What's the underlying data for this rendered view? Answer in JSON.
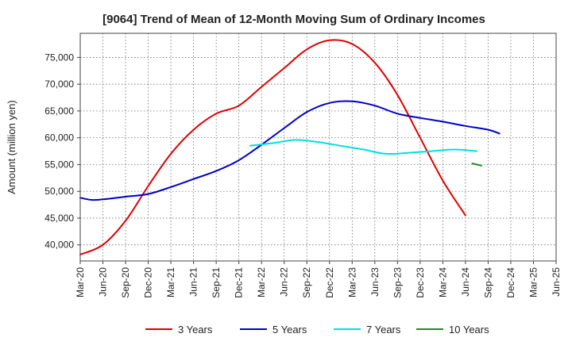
{
  "chart_data": {
    "type": "line",
    "title": "[9064]  Trend of Mean of 12-Month Moving Sum of Ordinary Incomes",
    "xlabel": "",
    "ylabel": "Amount (million yen)",
    "ylim": [
      37000,
      79500
    ],
    "yticks": [
      40000,
      45000,
      50000,
      55000,
      60000,
      65000,
      70000,
      75000
    ],
    "ytick_labels": [
      "40,000",
      "45,000",
      "50,000",
      "55,000",
      "60,000",
      "65,000",
      "70,000",
      "75,000"
    ],
    "x_tick_labels": [
      "Mar-20",
      "Jun-20",
      "Sep-20",
      "Dec-20",
      "Mar-21",
      "Jun-21",
      "Sep-21",
      "Dec-21",
      "Mar-22",
      "Jun-22",
      "Sep-22",
      "Dec-22",
      "Mar-23",
      "Jun-23",
      "Sep-23",
      "Dec-23",
      "Mar-24",
      "Jun-24",
      "Sep-24",
      "Dec-24",
      "Mar-25",
      "Jun-25"
    ],
    "grid": true,
    "legend_position": "bottom",
    "series": [
      {
        "name": "3 Years",
        "color": "#e00000",
        "points": [
          [
            0,
            38200
          ],
          [
            1,
            40000
          ],
          [
            2,
            44500
          ],
          [
            3,
            51000
          ],
          [
            4,
            57000
          ],
          [
            5,
            61500
          ],
          [
            6,
            64500
          ],
          [
            7,
            66000
          ],
          [
            8,
            69500
          ],
          [
            9,
            73000
          ],
          [
            10,
            76500
          ],
          [
            11,
            78200
          ],
          [
            12,
            77500
          ],
          [
            13,
            74000
          ],
          [
            14,
            68000
          ],
          [
            15,
            60000
          ],
          [
            16,
            52000
          ],
          [
            17,
            45500
          ]
        ]
      },
      {
        "name": "5 Years",
        "color": "#0000cc",
        "points": [
          [
            0,
            48800
          ],
          [
            0.5,
            48400
          ],
          [
            1,
            48500
          ],
          [
            2,
            49000
          ],
          [
            3,
            49500
          ],
          [
            4,
            50800
          ],
          [
            5,
            52300
          ],
          [
            6,
            53800
          ],
          [
            7,
            55800
          ],
          [
            8,
            58700
          ],
          [
            9,
            61800
          ],
          [
            10,
            64800
          ],
          [
            11,
            66500
          ],
          [
            12,
            66800
          ],
          [
            13,
            66000
          ],
          [
            14,
            64500
          ],
          [
            15,
            63700
          ],
          [
            16,
            63000
          ],
          [
            17,
            62200
          ],
          [
            18,
            61500
          ],
          [
            18.5,
            60800
          ]
        ]
      },
      {
        "name": "7 Years",
        "color": "#00e0e0",
        "points": [
          [
            7.5,
            58500
          ],
          [
            8.5,
            59000
          ],
          [
            9.5,
            59600
          ],
          [
            10.5,
            59200
          ],
          [
            11.5,
            58500
          ],
          [
            12.5,
            57800
          ],
          [
            13.5,
            57000
          ],
          [
            14.5,
            57200
          ],
          [
            15.5,
            57500
          ],
          [
            16.5,
            57800
          ],
          [
            17.5,
            57500
          ]
        ]
      },
      {
        "name": "10 Years",
        "color": "#228b22",
        "points": [
          [
            17.3,
            55200
          ],
          [
            17.7,
            54800
          ]
        ]
      }
    ]
  }
}
